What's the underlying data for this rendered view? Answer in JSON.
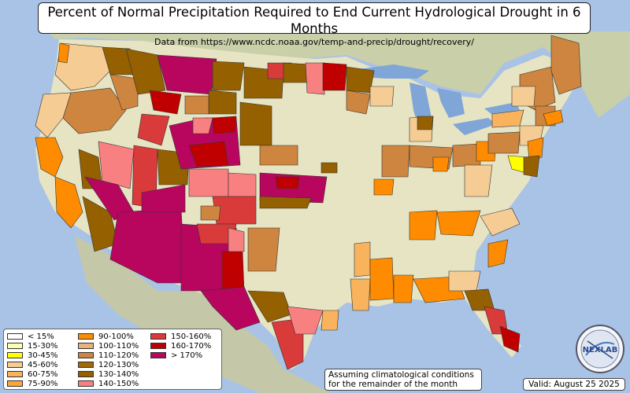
{
  "title": "Percent of Normal Precipitation Required to End Current Hydrological Drought in 6 Months",
  "subtitle": "Data from https://www.ncdc.noaa.gov/temp-and-precip/drought/recovery/",
  "note": {
    "line1": "Assuming climatological conditions",
    "line2": "for the remainder of the month"
  },
  "valid": "Valid: August 25 2025",
  "logo_text": "NEXLAB",
  "legend": [
    {
      "label": "< 15%",
      "color": "#ffffff"
    },
    {
      "label": "15-30%",
      "color": "#ffffb2"
    },
    {
      "label": "30-45%",
      "color": "#ffff00"
    },
    {
      "label": "45-60%",
      "color": "#f5cc94"
    },
    {
      "label": "60-75%",
      "color": "#f9b35c"
    },
    {
      "label": "75-90%",
      "color": "#fca63a"
    },
    {
      "label": "90-100%",
      "color": "#ff8c00"
    },
    {
      "label": "100-110%",
      "color": "#e6b380"
    },
    {
      "label": "110-120%",
      "color": "#cd853f"
    },
    {
      "label": "120-130%",
      "color": "#a0690a"
    },
    {
      "label": "130-140%",
      "color": "#946000"
    },
    {
      "label": "140-150%",
      "color": "#f98080"
    },
    {
      "label": "150-160%",
      "color": "#d93a3a"
    },
    {
      "label": "160-170%",
      "color": "#c00000"
    },
    {
      "label": "> 170%",
      "color": "#b8065e"
    }
  ],
  "colors": {
    "ocean": "#a9c3e6",
    "land": "#e6e4c3",
    "lakes": "#7fa6d6"
  }
}
